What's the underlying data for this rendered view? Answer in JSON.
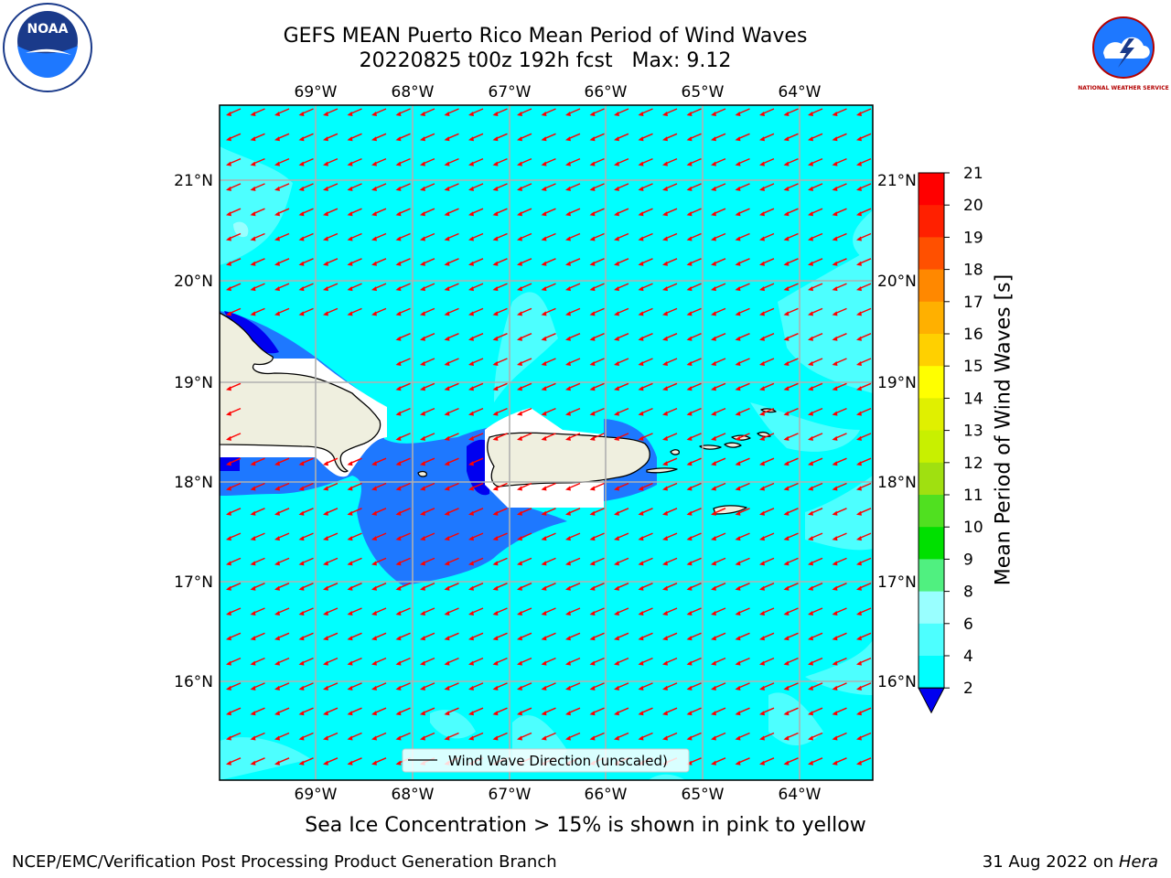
{
  "header": {
    "title": "GEFS MEAN Puerto Rico Mean Period of Wind Waves",
    "subtitle": "20220825 t00z 192h fcst   Max: 9.12"
  },
  "logos": {
    "left": "noaa-logo",
    "right": "national-weather-service-logo",
    "left_text": "NOAA",
    "right_text": "NATIONAL WEATHER SERVICE"
  },
  "map": {
    "lon_labels": [
      "69°W",
      "68°W",
      "67°W",
      "66°W",
      "65°W",
      "64°W"
    ],
    "lat_labels": [
      "21°N",
      "20°N",
      "19°N",
      "18°N",
      "17°N",
      "16°N"
    ],
    "legend": "Wind Wave Direction (unscaled)",
    "colors": {
      "ocean": "#00ffff",
      "light_band": "#4dffff",
      "lighter_band": "#99ffff",
      "mid_blue": "#1e78ff",
      "dark_blue": "#0000f0",
      "land": "#efefdf",
      "arrow": "#ff0000",
      "grid": "#b0b0b0"
    }
  },
  "colorbar": {
    "label": "Mean Period of Wind Waves [s]",
    "ticks": [
      "2",
      "4",
      "6",
      "8",
      "9",
      "10",
      "11",
      "12",
      "13",
      "14",
      "15",
      "16",
      "17",
      "18",
      "19",
      "20",
      "21"
    ],
    "colors": [
      "#0000f0",
      "#1e78ff",
      "#00ffff",
      "#4dffff",
      "#99ffff",
      "#50f080",
      "#00e000",
      "#50e020",
      "#a0e010",
      "#c8f000",
      "#e0f000",
      "#ffff00",
      "#ffd000",
      "#ffb000",
      "#ff8800",
      "#ff5000",
      "#ff2000",
      "#ff0000"
    ]
  },
  "notes": {
    "ice": "Sea Ice Concentration > 15% is shown in pink to yellow",
    "footer_left": "NCEP/EMC/Verification Post Processing Product Generation Branch",
    "footer_right_date": "31 Aug 2022 on ",
    "footer_right_host": "Hera"
  }
}
